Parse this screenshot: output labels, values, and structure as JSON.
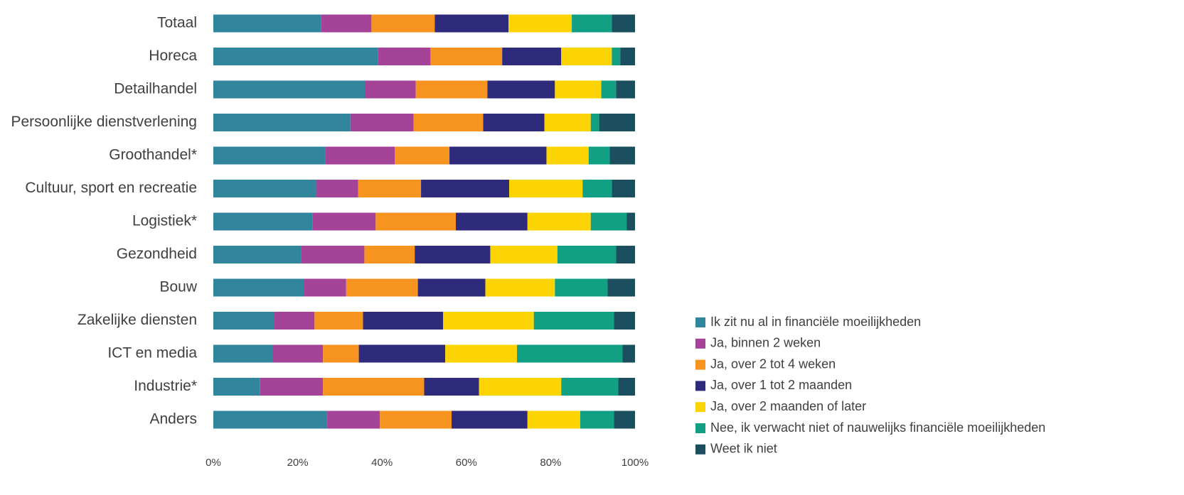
{
  "chart_data": {
    "type": "bar",
    "orientation": "horizontal",
    "stacked": "percent",
    "title": "",
    "xlabel": "",
    "ylabel": "",
    "xlim": [
      0,
      100
    ],
    "x_ticks": [
      "0%",
      "20%",
      "40%",
      "60%",
      "80%",
      "100%"
    ],
    "grid": false,
    "legend_position": "right-bottom",
    "categories": [
      "Totaal",
      "Horeca",
      "Detailhandel",
      "Persoonlijke dienstverlening",
      "Groothandel*",
      "Cultuur, sport en recreatie",
      "Logistiek*",
      "Gezondheid",
      "Bouw",
      "Zakelijke diensten",
      "ICT en media",
      "Industrie*",
      "Anders"
    ],
    "series": [
      {
        "name": "Ik zit nu al in financiële moeilijkheden",
        "color": "#31859c",
        "values": [
          25.5,
          39,
          36,
          32.5,
          26.5,
          24.5,
          23.5,
          21,
          21.5,
          14.5,
          14,
          11,
          27
        ]
      },
      {
        "name": "Ja, binnen 2 weken",
        "color": "#a54399",
        "values": [
          12,
          12.5,
          12,
          15,
          16.5,
          10,
          15,
          15,
          10,
          9.5,
          12,
          15,
          12.5
        ]
      },
      {
        "name": "Ja, over 2 tot 4 weken",
        "color": "#f79420",
        "values": [
          15,
          17,
          17,
          16.5,
          13,
          15,
          19,
          12,
          17,
          11.5,
          8.5,
          24,
          17
        ]
      },
      {
        "name": "Ja, over 1 tot 2 maanden",
        "color": "#2e2a7c",
        "values": [
          17.5,
          14,
          16,
          14.5,
          23,
          21,
          17,
          18,
          16,
          19,
          20.5,
          13,
          18
        ]
      },
      {
        "name": "Ja, over 2 maanden of later",
        "color": "#fdd403",
        "values": [
          15,
          12,
          11,
          11,
          10,
          17.5,
          15,
          16,
          16.5,
          21.5,
          17,
          19.5,
          12.5
        ]
      },
      {
        "name": "Nee, ik verwacht niet of nauwelijks financiële moeilijkheden",
        "color": "#12a085",
        "values": [
          9.5,
          2,
          3.5,
          2,
          5,
          7,
          8.5,
          14,
          12.5,
          19,
          25,
          13.5,
          8
        ]
      },
      {
        "name": "Weet ik niet",
        "color": "#1b4e5e",
        "values": [
          5.5,
          3.5,
          4.5,
          8.5,
          6,
          5.5,
          2,
          4.5,
          6.5,
          5,
          3,
          4,
          5
        ]
      }
    ]
  }
}
